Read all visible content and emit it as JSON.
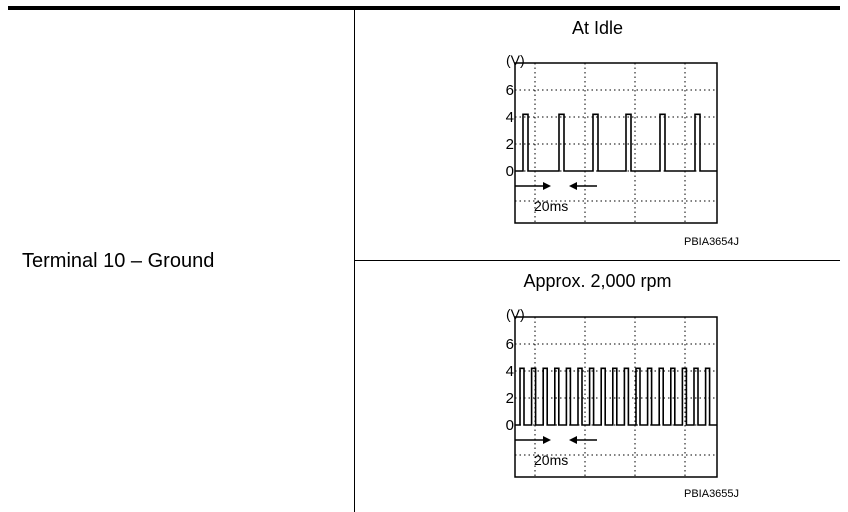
{
  "row_label": "Terminal 10 – Ground",
  "figures": [
    {
      "title": "At Idle",
      "figure_id": "PBIA3654J",
      "unit_label": "(V)",
      "y_ticks": [
        "0",
        "2",
        "4",
        "6"
      ],
      "scale_label": "20ms",
      "pulse_voltage": 4.2,
      "pulses_per_20ms": 1
    },
    {
      "title": "Approx. 2,000 rpm",
      "figure_id": "PBIA3655J",
      "unit_label": "(V)",
      "y_ticks": [
        "0",
        "2",
        "4",
        "6"
      ],
      "scale_label": "20ms",
      "pulse_voltage": 4.2,
      "pulses_per_20ms": 3
    }
  ],
  "chart_data": [
    {
      "type": "line",
      "title": "At Idle",
      "ylabel": "(V)",
      "ylim": [
        0,
        7
      ],
      "y_ticks": [
        0,
        2,
        4,
        6
      ],
      "grid": true,
      "series": [
        {
          "x_ms": [
            0,
            20,
            40,
            60,
            80,
            100
          ],
          "pulse_high_v": 4.2,
          "low_v": 0
        }
      ],
      "annotation": "20ms"
    },
    {
      "type": "line",
      "title": "Approx. 2,000 rpm",
      "ylabel": "(V)",
      "ylim": [
        0,
        7
      ],
      "y_ticks": [
        0,
        2,
        4,
        6
      ],
      "grid": true,
      "series": [
        {
          "pulse_high_v": 4.2,
          "low_v": 0
        }
      ],
      "annotation": "20ms"
    }
  ]
}
